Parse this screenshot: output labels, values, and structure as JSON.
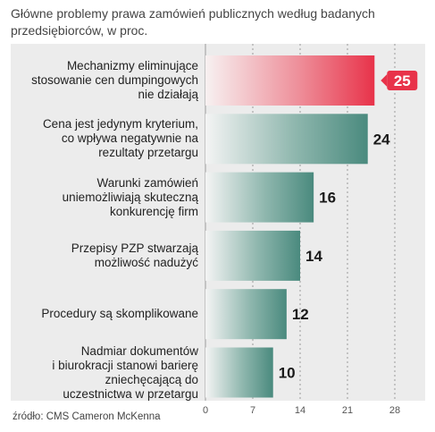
{
  "header": {
    "title": "Główne problemy prawa zamówień publicznych według badanych przedsiębiorców, w proc."
  },
  "footer": {
    "source": "źródło: CMS Cameron McKenna"
  },
  "colors": {
    "highlight": "#e8334a",
    "bar": "#4a8a7e",
    "panel": "#ececec"
  },
  "chart_data": {
    "type": "bar",
    "orientation": "horizontal",
    "title": "Główne problemy prawa zamówień publicznych według badanych przedsiębiorców, w proc.",
    "categories": [
      "Mechanizmy eliminujące\nstosowanie cen dumpingowych\nnie działają",
      "Cena jest jedynym kryterium,\nco wpływa negatywnie na\nrezultaty przetargu",
      "Warunki zamówień\nuniemożliwiają skuteczną\nkonkurencję firm",
      "Przepisy PZP stwarzają\nmożliwość nadużyć",
      "Procedury są skomplikowane",
      "Nadmiar dokumentów\ni biurokracji stanowi barierę\nzniechęcającą do\nuczestnictwa w przetargu"
    ],
    "values": [
      25,
      24,
      16,
      14,
      12,
      10
    ],
    "value_labels": [
      "25",
      "24",
      "16",
      "14",
      "12",
      "10"
    ],
    "highlight_index": 0,
    "xlim": [
      0,
      28
    ],
    "xticks": [
      0,
      7,
      14,
      21,
      28
    ],
    "xtick_labels": [
      "0",
      "7",
      "14",
      "21",
      "28"
    ],
    "grid": true,
    "legend": "none"
  }
}
